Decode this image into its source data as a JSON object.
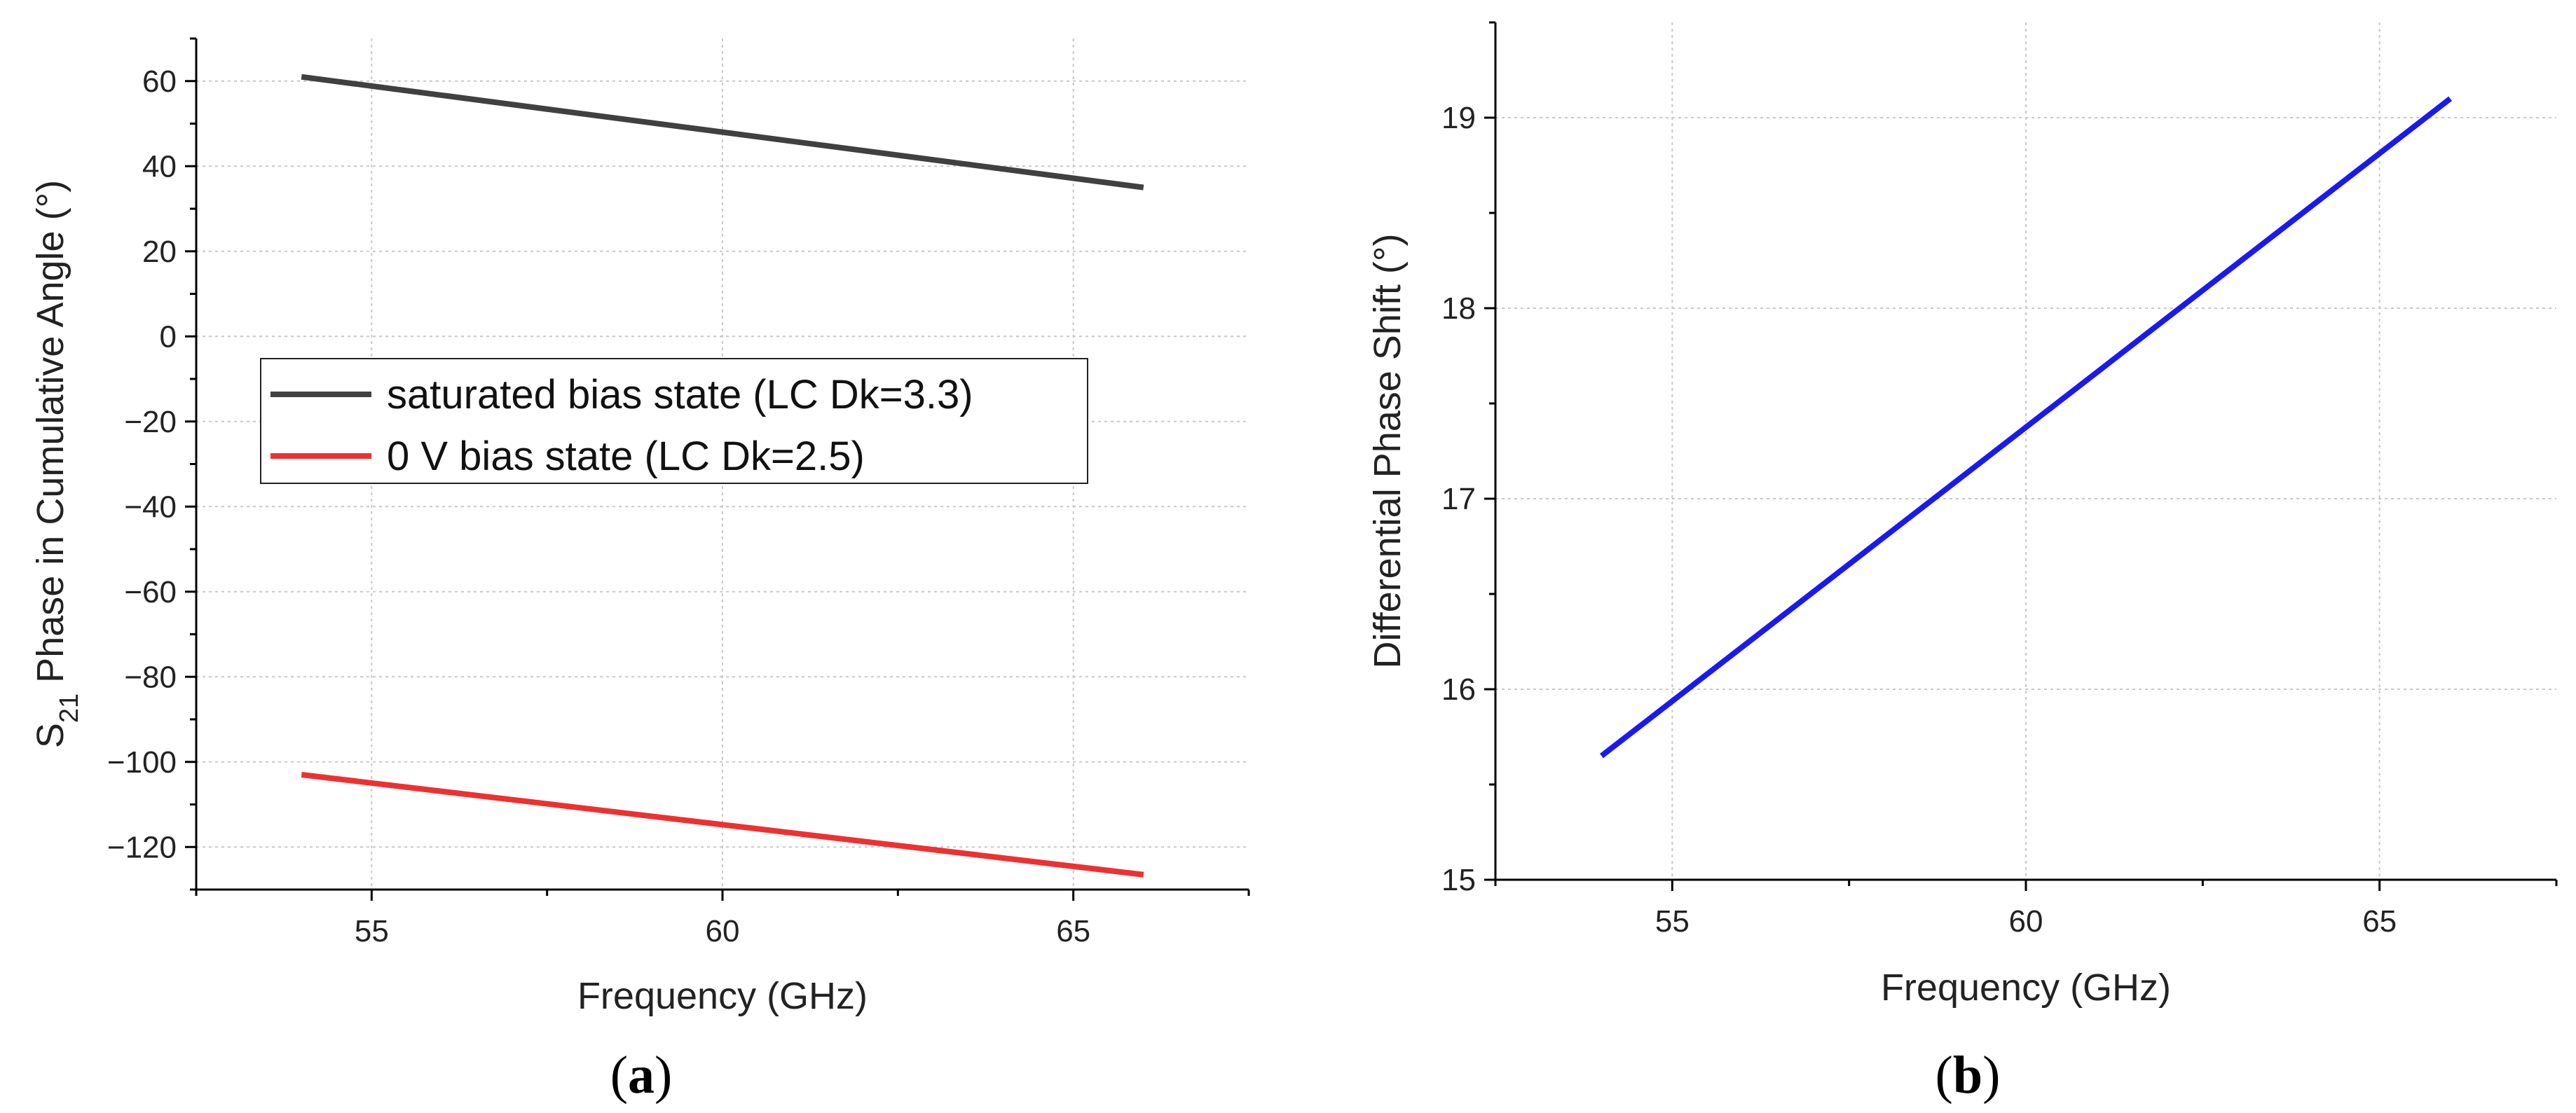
{
  "chart_data": [
    {
      "type": "line",
      "panel": "(a)",
      "panel_letter": "a",
      "title": "",
      "xlabel": "Frequency (GHz)",
      "ylabel_prefix": "S",
      "ylabel_sub": "21",
      "ylabel_rest": " Phase in Cumulative Angle (°)",
      "xlim": [
        52.5,
        67.5
      ],
      "ylim": [
        -130,
        70
      ],
      "xticks": [
        55,
        60,
        65
      ],
      "yticks": [
        60,
        40,
        20,
        0,
        -20,
        -40,
        -60,
        -80,
        -100,
        -120
      ],
      "grid": true,
      "legend_position": "center-left",
      "series": [
        {
          "name": "saturated bias state (LC Dk=3.3)",
          "color": "#404040",
          "x": [
            54,
            66
          ],
          "values": [
            61,
            35
          ]
        },
        {
          "name": "0 V bias state (LC Dk=2.5)",
          "color": "#ee3030",
          "x": [
            54,
            66
          ],
          "values": [
            -103,
            -126.5
          ]
        }
      ]
    },
    {
      "type": "line",
      "panel": "(b)",
      "panel_letter": "b",
      "title": "",
      "xlabel": "Frequency (GHz)",
      "ylabel": "Differential Phase Shift (°)",
      "xlim": [
        52.5,
        67.5
      ],
      "ylim": [
        15,
        19.5
      ],
      "xticks": [
        55,
        60,
        65
      ],
      "yticks": [
        19,
        18,
        17,
        16,
        15
      ],
      "grid": true,
      "series": [
        {
          "name": "Differential Phase Shift",
          "color": "#1a1aee",
          "x": [
            54,
            66
          ],
          "values": [
            15.65,
            19.1
          ]
        }
      ]
    }
  ]
}
